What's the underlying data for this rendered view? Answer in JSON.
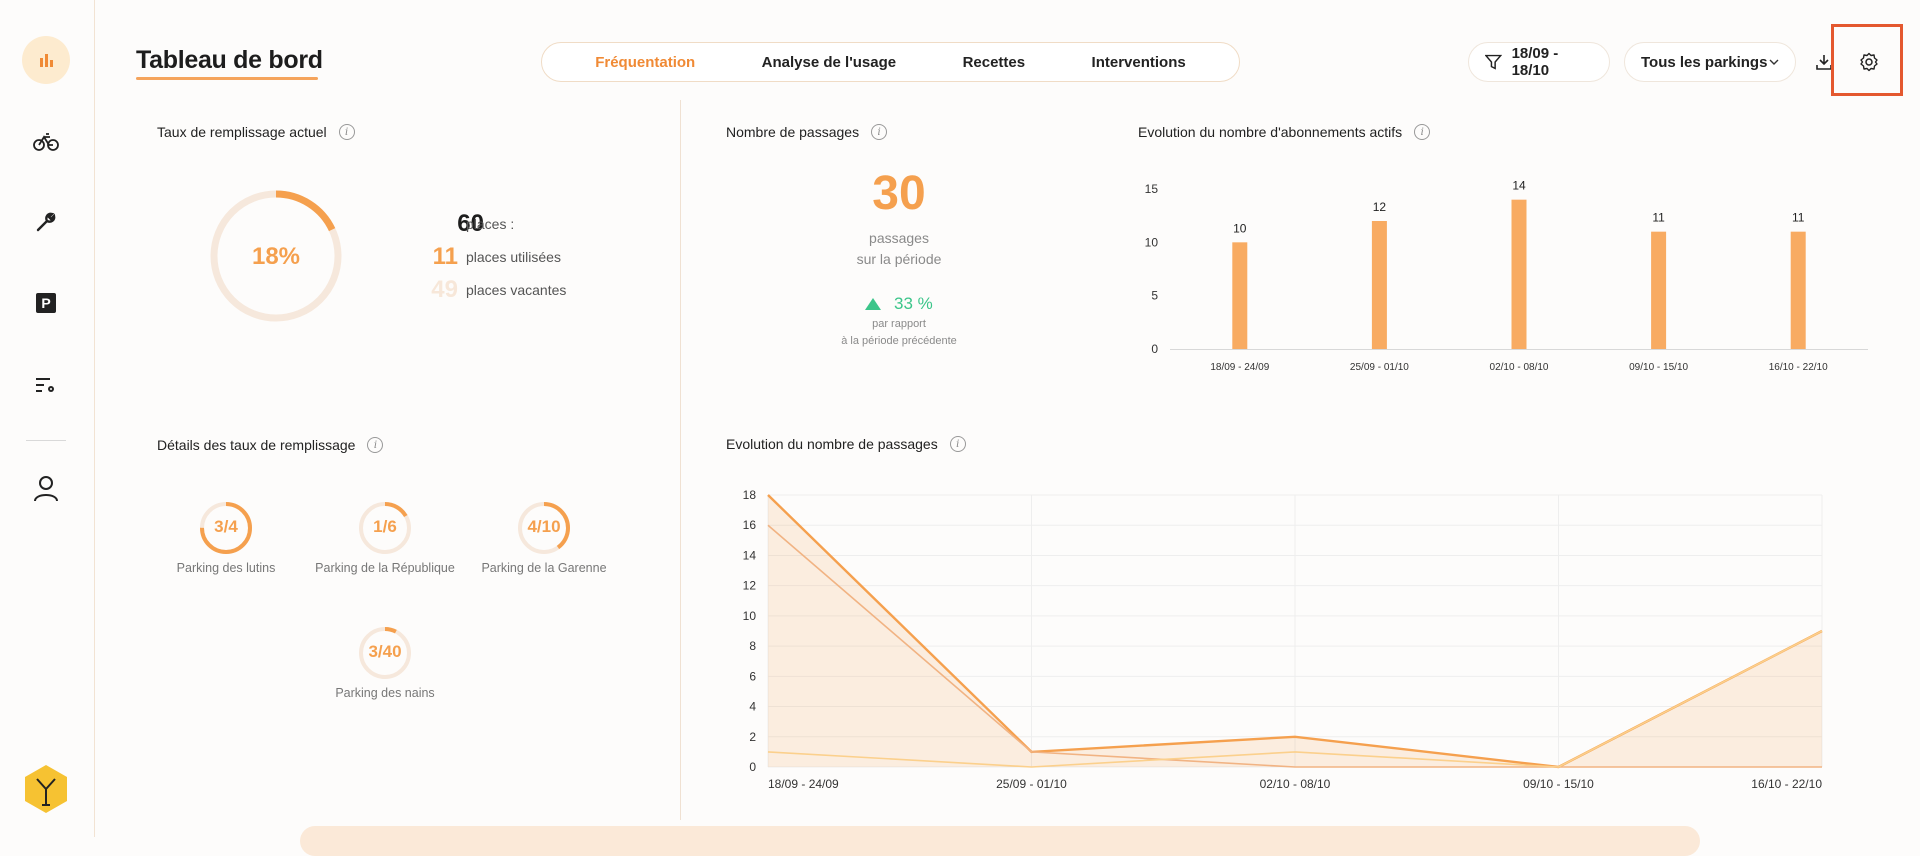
{
  "header": {
    "title": "Tableau de bord",
    "tabs": [
      {
        "label": "Fréquentation",
        "active": true
      },
      {
        "label": "Analyse de l'usage",
        "active": false
      },
      {
        "label": "Recettes",
        "active": false
      },
      {
        "label": "Interventions",
        "active": false
      }
    ],
    "date_filter": "18/09 - 18/10",
    "parking_select": "Tous les parkings"
  },
  "sidebar": {
    "items": [
      {
        "icon": "bar-chart-icon",
        "active": true
      },
      {
        "icon": "bicycle-icon"
      },
      {
        "icon": "wrench-icon"
      },
      {
        "icon": "parking-icon"
      },
      {
        "icon": "list-settings-icon"
      },
      {
        "icon": "user-icon"
      }
    ],
    "logo": "yellow-hexagon-logo"
  },
  "fill_rate": {
    "title": "Taux de remplissage actuel",
    "percent_label": "18%",
    "percent": 18,
    "total": "60",
    "total_label": "places :",
    "used": "11",
    "used_label": "places utilisées",
    "vacant": "49",
    "vacant_label": "places vacantes"
  },
  "passages": {
    "title": "Nombre de passages",
    "count": "30",
    "count_label_1": "passages",
    "count_label_2": "sur la période",
    "change": "33 %",
    "change_label_1": "par rapport",
    "change_label_2": "à la période précédente"
  },
  "fill_details": {
    "title": "Détails des taux de remplissage",
    "parkings": [
      {
        "ratio": "3/4",
        "name": "Parking des lutins",
        "fraction": 0.75
      },
      {
        "ratio": "1/6",
        "name": "Parking de la République",
        "fraction": 0.1667
      },
      {
        "ratio": "4/10",
        "name": "Parking de la Garenne",
        "fraction": 0.4
      },
      {
        "ratio": "3/40",
        "name": "Parking des nains",
        "fraction": 0.075
      }
    ]
  },
  "subscriptions": {
    "title": "Evolution du nombre d'abonnements actifs"
  },
  "passages_evolution": {
    "title": "Evolution du nombre de passages"
  },
  "colors": {
    "accent": "#f08a35",
    "bar": "#f8ab62",
    "ring_bg": "#f6e8dc",
    "up": "#3cc58a"
  },
  "chart_data": [
    {
      "type": "bar",
      "title": "Evolution du nombre d'abonnements actifs",
      "categories": [
        "18/09 - 24/09",
        "25/09 - 01/10",
        "02/10 - 08/10",
        "09/10 - 15/10",
        "16/10 - 22/10"
      ],
      "values": [
        10,
        12,
        14,
        11,
        11
      ],
      "ylim": [
        0,
        15
      ],
      "yticks": [
        0,
        5,
        10,
        15
      ],
      "grid": false
    },
    {
      "type": "area",
      "title": "Evolution du nombre de passages",
      "categories": [
        "18/09 - 24/09",
        "25/09 - 01/10",
        "02/10 - 08/10",
        "09/10 - 15/10",
        "16/10 - 22/10"
      ],
      "ylim": [
        0,
        18
      ],
      "yticks": [
        0,
        2,
        4,
        6,
        8,
        10,
        12,
        14,
        16,
        18
      ],
      "grid": true,
      "series": [
        {
          "values": [
            18,
            1,
            2,
            0,
            9
          ],
          "color": "#f5a04e"
        },
        {
          "values": [
            16,
            1,
            0,
            0,
            0
          ],
          "color": "#f1b383"
        },
        {
          "values": [
            1,
            0,
            1,
            0,
            9
          ],
          "color": "#fbd08c"
        }
      ]
    }
  ]
}
